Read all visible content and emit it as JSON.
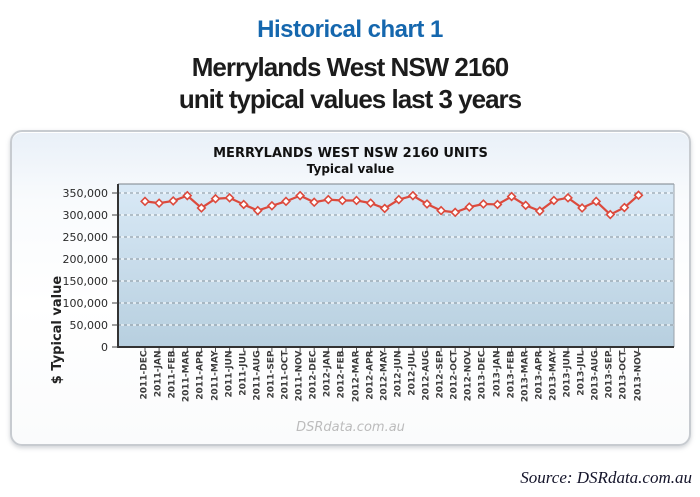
{
  "page": {
    "heading1": "Historical chart 1",
    "heading2_line1": "Merrylands West NSW 2160",
    "heading2_line2": "unit typical values last 3 years",
    "source": "Source: DSRdata.com.au",
    "colors": {
      "heading_blue": "#1567ae",
      "heading_black": "#1c1c1c"
    }
  },
  "chart_data": {
    "type": "line",
    "title": "MERRYLANDS WEST NSW 2160 UNITS",
    "subtitle": "Typical value",
    "ylabel": "$ Typical value",
    "xlabel": "",
    "watermark": "DSRdata.com.au",
    "legend": false,
    "grid": true,
    "ylim": [
      0,
      350000
    ],
    "ytick_step": 50000,
    "ytick_labels": [
      "0",
      "50,000",
      "100,000",
      "150,000",
      "200,000",
      "250,000",
      "300,000",
      "350,000"
    ],
    "categories": [
      "2011-DEC",
      "2011-JAN",
      "2011-FEB",
      "2011-MAR",
      "2011-APR",
      "2011-MAY",
      "2011-JUN",
      "2011-JUL",
      "2011-AUG",
      "2011-SEP",
      "2011-OCT",
      "2011-NOV",
      "2012-DEC",
      "2012-JAN",
      "2012-FEB",
      "2012-MAR",
      "2012-APR",
      "2012-MAY",
      "2012-JUN",
      "2012-JUL",
      "2012-AUG",
      "2012-SEP",
      "2012-OCT",
      "2012-NOV",
      "2013-DEC",
      "2013-JAN",
      "2013-FEB",
      "2013-MAR",
      "2013-APR",
      "2013-MAY",
      "2013-JUN",
      "2013-JUL",
      "2013-AUG",
      "2013-SEP",
      "2013-OCT",
      "2013-NOV"
    ],
    "values": [
      331000,
      327000,
      332000,
      344000,
      316000,
      337000,
      339000,
      324000,
      310000,
      321000,
      331000,
      344000,
      329000,
      335000,
      333000,
      333000,
      327000,
      315000,
      335000,
      344000,
      325000,
      310000,
      306000,
      318000,
      325000,
      324000,
      342000,
      322000,
      309000,
      333000,
      339000,
      316000,
      331000,
      301000,
      317000,
      345000
    ],
    "line_color": "#dc4a3d",
    "marker": "diamond",
    "marker_fill": "#ffffff",
    "plot_bg_top": "#d9e9f6",
    "plot_bg_bottom": "#b7cfdf",
    "gridline_color": "#8e989f",
    "axis_color": "#333333"
  }
}
